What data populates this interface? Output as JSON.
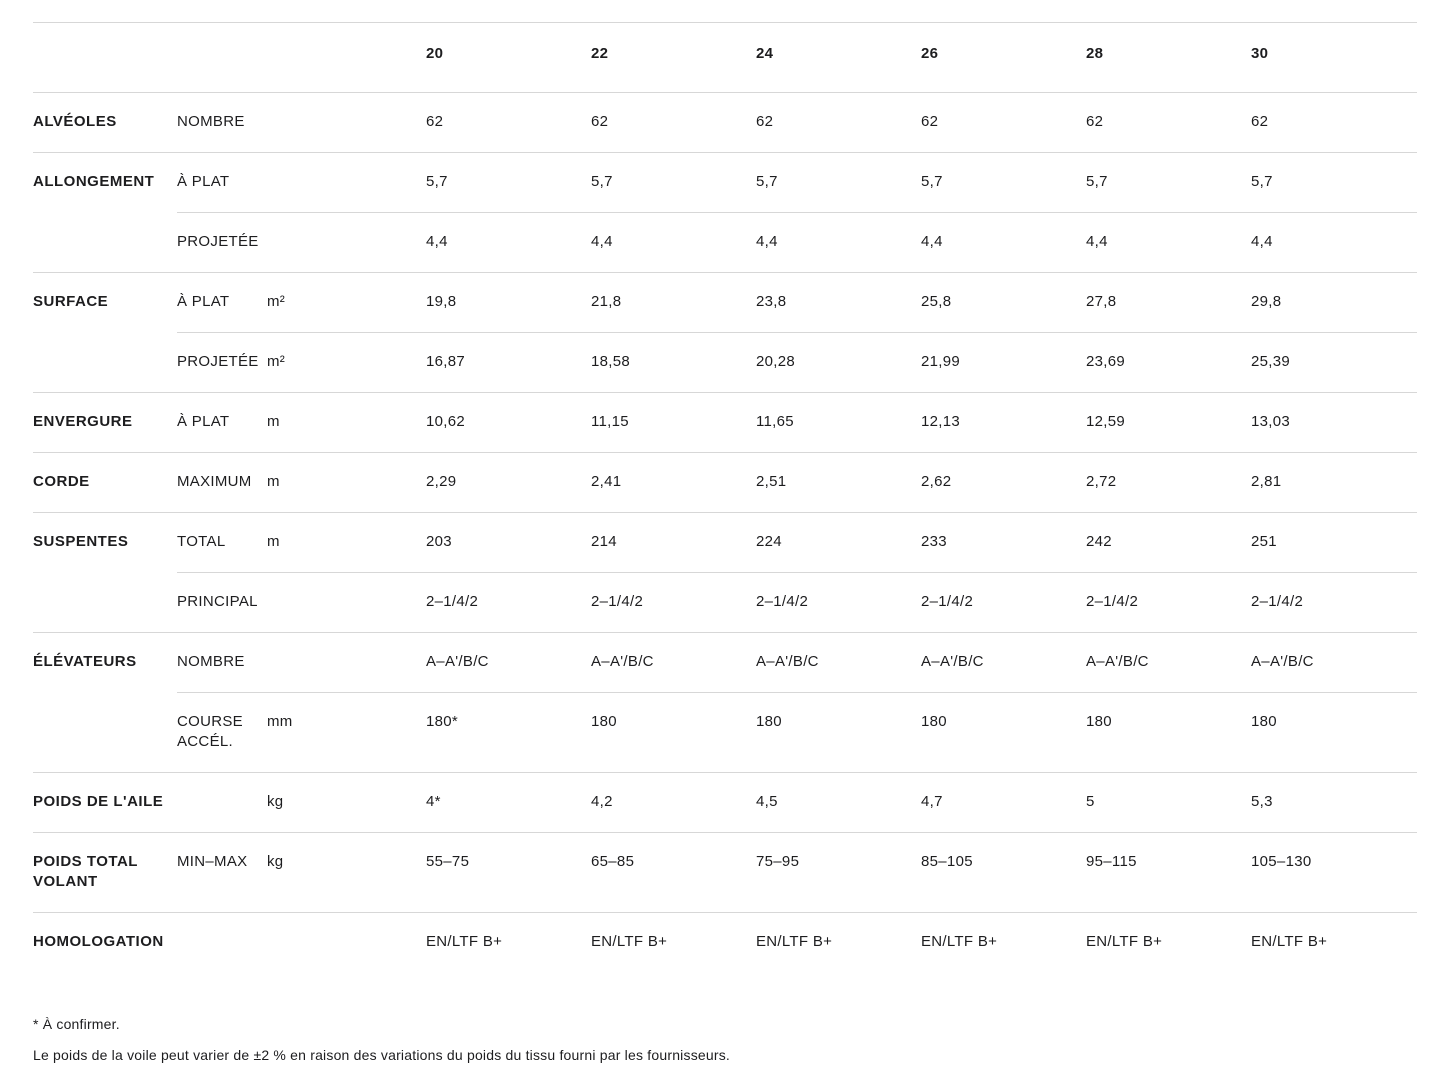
{
  "table": {
    "sizes": [
      "20",
      "22",
      "24",
      "26",
      "28",
      "30"
    ],
    "rows": [
      {
        "group": "ALVÉOLES",
        "sub": "NOMBRE",
        "unit": "",
        "values": [
          "62",
          "62",
          "62",
          "62",
          "62",
          "62"
        ]
      },
      {
        "group": "ALLONGEMENT",
        "sub": "À PLAT",
        "unit": "",
        "values": [
          "5,7",
          "5,7",
          "5,7",
          "5,7",
          "5,7",
          "5,7"
        ]
      },
      {
        "group": "",
        "sub": "PROJETÉE",
        "unit": "",
        "values": [
          "4,4",
          "4,4",
          "4,4",
          "4,4",
          "4,4",
          "4,4"
        ]
      },
      {
        "group": "SURFACE",
        "sub": "À PLAT",
        "unit": "m²",
        "values": [
          "19,8",
          "21,8",
          "23,8",
          "25,8",
          "27,8",
          "29,8"
        ]
      },
      {
        "group": "",
        "sub": "PROJETÉE",
        "unit": "m²",
        "values": [
          "16,87",
          "18,58",
          "20,28",
          "21,99",
          "23,69",
          "25,39"
        ]
      },
      {
        "group": "ENVERGURE",
        "sub": "À PLAT",
        "unit": "m",
        "values": [
          "10,62",
          "11,15",
          "11,65",
          "12,13",
          "12,59",
          "13,03"
        ]
      },
      {
        "group": "CORDE",
        "sub": "MAXIMUM",
        "unit": "m",
        "values": [
          "2,29",
          "2,41",
          "2,51",
          "2,62",
          "2,72",
          "2,81"
        ]
      },
      {
        "group": "SUSPENTES",
        "sub": "TOTAL",
        "unit": "m",
        "values": [
          "203",
          "214",
          "224",
          "233",
          "242",
          "251"
        ]
      },
      {
        "group": "",
        "sub": "PRINCIPAL",
        "unit": "",
        "values": [
          "2–1/4/2",
          "2–1/4/2",
          "2–1/4/2",
          "2–1/4/2",
          "2–1/4/2",
          "2–1/4/2"
        ]
      },
      {
        "group": "ÉLÉVATEURS",
        "sub": "NOMBRE",
        "unit": "",
        "values": [
          "A–A'/B/C",
          "A–A'/B/C",
          "A–A'/B/C",
          "A–A'/B/C",
          "A–A'/B/C",
          "A–A'/B/C"
        ]
      },
      {
        "group": "",
        "sub": "COURSE ACCÉL.",
        "unit": "mm",
        "values": [
          "180*",
          "180",
          "180",
          "180",
          "180",
          "180"
        ]
      },
      {
        "group": "POIDS DE L'AILE",
        "sub": "",
        "unit": "kg",
        "values": [
          "4*",
          "4,2",
          "4,5",
          "4,7",
          "5",
          "5,3"
        ]
      },
      {
        "group": "POIDS TOTAL VOLANT",
        "sub": "MIN–MAX",
        "unit": "kg",
        "values": [
          "55–75",
          "65–85",
          "75–95",
          "85–105",
          "95–115",
          "105–130"
        ]
      },
      {
        "group": "HOMOLOGATION",
        "sub": "",
        "unit": "",
        "values": [
          "EN/LTF B+",
          "EN/LTF B+",
          "EN/LTF B+",
          "EN/LTF B+",
          "EN/LTF B+",
          "EN/LTF B+"
        ]
      }
    ]
  },
  "footnotes": {
    "asterisk": "* À confirmer.",
    "weight_variation": "Le poids de la voile peut varier de ±2 % en raison des variations du poids du tissu fourni par les fournisseurs."
  }
}
